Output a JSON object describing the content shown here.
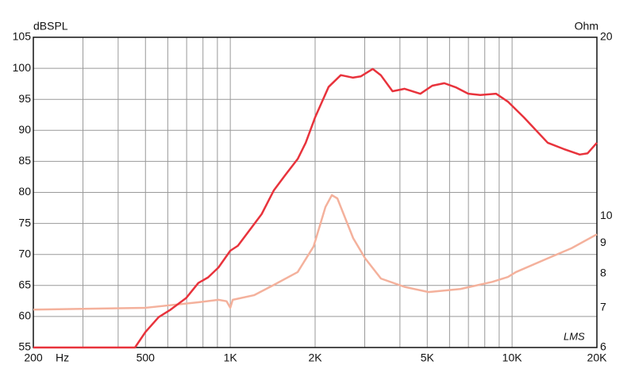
{
  "chart_data": {
    "type": "line",
    "y_label": "dBSPL",
    "y2_label": "Ohm",
    "x_unit": "Hz",
    "watermark": "LMS",
    "xscale": "log",
    "y2scale": "log",
    "grid": true,
    "xlim": [
      200,
      20000
    ],
    "ylim": [
      55,
      105
    ],
    "y2lim": [
      6,
      20
    ],
    "xticks": [
      200,
      500,
      {
        "value": 1000,
        "label": "1K"
      },
      {
        "value": 2000,
        "label": "2K"
      },
      {
        "value": 5000,
        "label": "5K"
      },
      {
        "value": 10000,
        "label": "10K"
      },
      {
        "value": 20000,
        "label": "20K"
      }
    ],
    "xgrid": [
      300,
      400,
      600,
      700,
      800,
      900,
      3000,
      4000,
      6000,
      7000,
      8000,
      9000
    ],
    "yticks": [
      55,
      60,
      65,
      70,
      75,
      80,
      85,
      90,
      95,
      100,
      105
    ],
    "y2ticks": [
      6,
      7,
      8,
      9,
      10,
      20
    ],
    "series": [
      {
        "color": "#e8333c",
        "x": [
          200,
          459,
          500,
          557,
          614,
          698,
          770,
          834,
          908,
          1000,
          1064,
          1170,
          1292,
          1426,
          1573,
          1735,
          1852,
          2000,
          2233,
          2467,
          2720,
          2903,
          3202,
          3420,
          3765,
          4154,
          4726,
          5210,
          5748,
          6340,
          6990,
          7710,
          8780,
          9680,
          11010,
          13380,
          15240,
          17380,
          18540,
          20000
        ],
        "values": [
          55,
          55,
          57.5,
          59.9,
          61.1,
          63,
          65.4,
          66.3,
          67.9,
          70.6,
          71.4,
          73.9,
          76.5,
          80.3,
          82.9,
          85.4,
          88,
          92.1,
          97,
          98.9,
          98.5,
          98.7,
          99.9,
          98.9,
          96.3,
          96.7,
          95.9,
          97.2,
          97.6,
          96.9,
          95.9,
          95.7,
          95.9,
          94.6,
          92.1,
          88,
          87,
          86.1,
          86.3,
          88
        ]
      },
      {
        "color": "#f4b19c",
        "axis": "y2",
        "x": [
          200,
          500,
          770,
          908,
          970,
          1000,
          1020,
          1214,
          1427,
          1734,
          1975,
          2176,
          2293,
          2399,
          2730,
          3010,
          3425,
          4163,
          5056,
          6557,
          8500,
          9670,
          10320,
          13380,
          16250,
          20000
        ],
        "values": [
          6.95,
          7.0,
          7.15,
          7.22,
          7.18,
          7.0,
          7.22,
          7.35,
          7.65,
          8.04,
          8.88,
          10.35,
          10.84,
          10.7,
          9.17,
          8.48,
          7.84,
          7.59,
          7.44,
          7.53,
          7.74,
          7.89,
          8.04,
          8.48,
          8.82,
          9.31
        ]
      }
    ]
  }
}
